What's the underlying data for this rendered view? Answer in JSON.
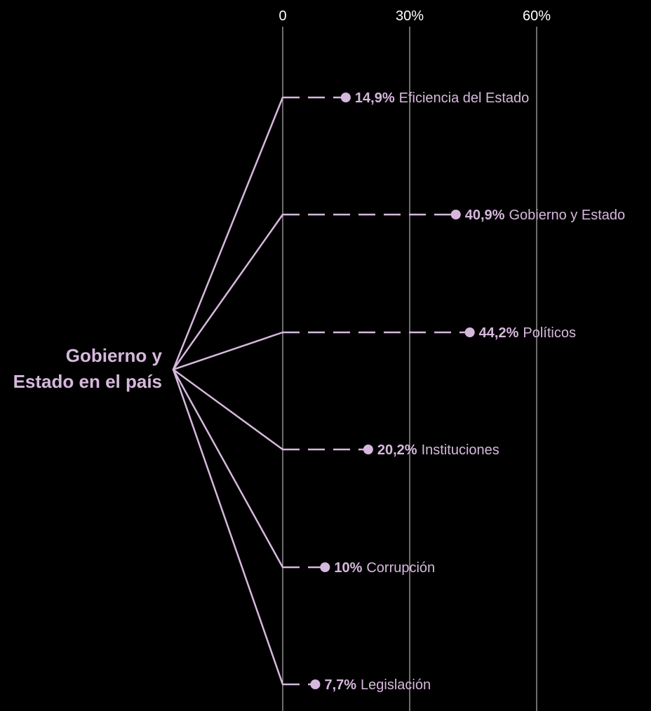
{
  "chart_data": {
    "type": "dot-branch",
    "root_label": [
      "Gobierno y",
      "Estado en el país"
    ],
    "axis": {
      "xlim": [
        0,
        70
      ],
      "ticks": [
        0,
        30,
        60
      ],
      "tick_labels": [
        "0",
        "30%",
        "60%"
      ],
      "grid": true
    },
    "points": [
      {
        "category": "Eficiencia del Estado",
        "value": 14.9,
        "value_label": "14,9%"
      },
      {
        "category": "Gobierno y Estado",
        "value": 40.9,
        "value_label": "40,9%"
      },
      {
        "category": "Políticos",
        "value": 44.2,
        "value_label": "44,2%"
      },
      {
        "category": "Instituciones",
        "value": 20.2,
        "value_label": "20,2%"
      },
      {
        "category": "Corrupción",
        "value": 10,
        "value_label": "10%"
      },
      {
        "category": "Legislación",
        "value": 7.7,
        "value_label": "7,7%"
      }
    ]
  },
  "colors": {
    "background": "#000000",
    "accent": "#d6b8dd",
    "grid": "#ffffff",
    "tick_text": "#ffffff"
  }
}
